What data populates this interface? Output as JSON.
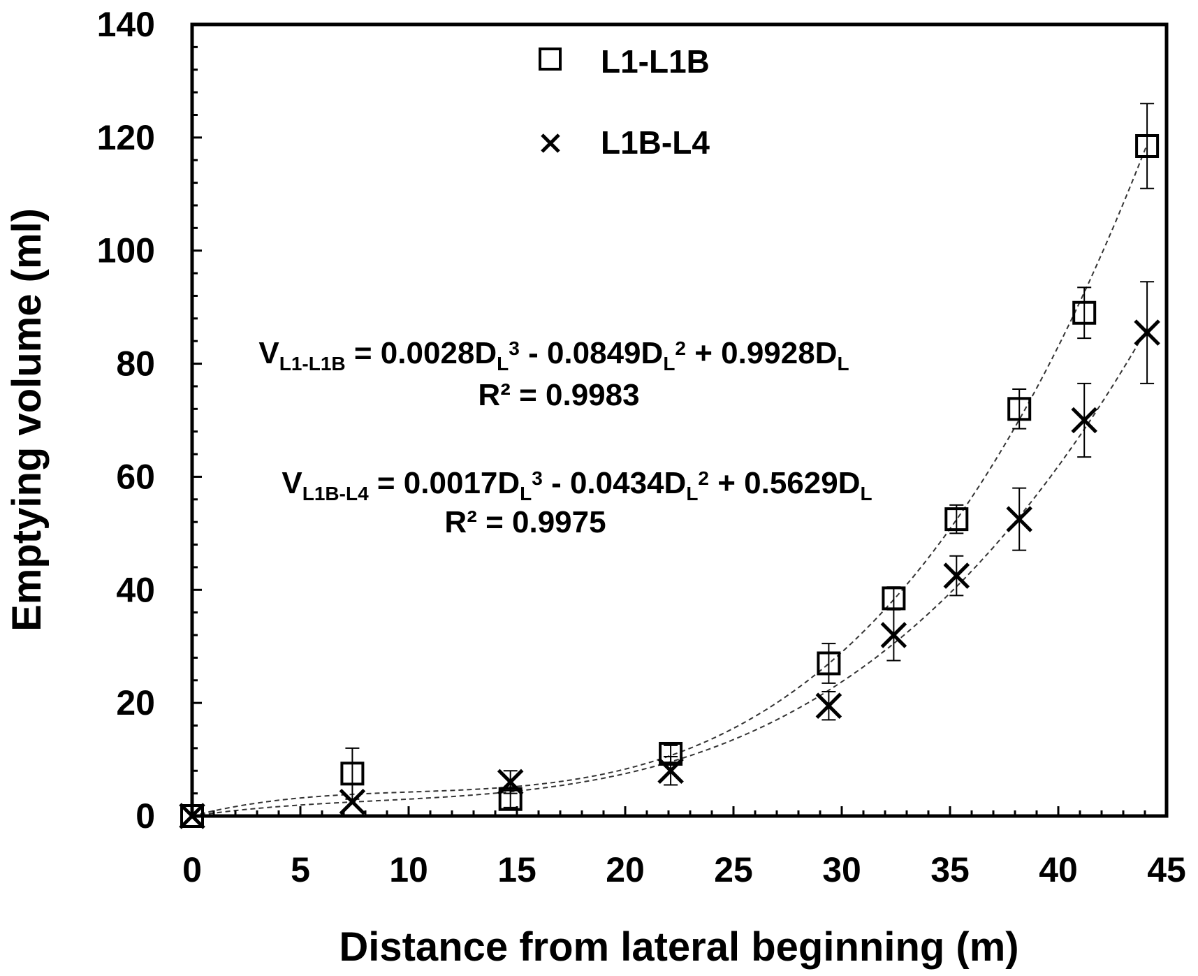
{
  "chart_data": {
    "type": "scatter",
    "xlabel": "Distance from lateral beginning (m)",
    "ylabel": "Emptying volume (ml)",
    "xlim": [
      0,
      45
    ],
    "ylim": [
      0,
      140
    ],
    "xticks": [
      0,
      5,
      10,
      15,
      20,
      25,
      30,
      35,
      40,
      45
    ],
    "yticks": [
      0,
      20,
      40,
      60,
      80,
      100,
      120,
      140
    ],
    "grid": false,
    "legend_position": "top-center",
    "series": [
      {
        "name": "L1-L1B",
        "marker": "open-square",
        "points": [
          {
            "x": 0,
            "y": 0,
            "err": 0
          },
          {
            "x": 7.4,
            "y": 7.5,
            "err": 4.5
          },
          {
            "x": 14.7,
            "y": 3,
            "err": 1.5
          },
          {
            "x": 22.1,
            "y": 11,
            "err": 1.5
          },
          {
            "x": 29.4,
            "y": 27,
            "err": 3.5
          },
          {
            "x": 32.4,
            "y": 38.5,
            "err": 2
          },
          {
            "x": 35.3,
            "y": 52.5,
            "err": 2.5
          },
          {
            "x": 38.2,
            "y": 72,
            "err": 3.5
          },
          {
            "x": 41.2,
            "y": 89,
            "err": 4.5
          },
          {
            "x": 44.1,
            "y": 118.5,
            "err": 7.5
          }
        ],
        "trendline": {
          "a3": 0.0028,
          "a2": -0.0849,
          "a1": 0.9928
        },
        "equation": {
          "lead": "V",
          "sub": "L1-L1B",
          "body": " = 0.0028D",
          "t1sub": "L",
          "t1sup": "3",
          "t2": " - 0.0849D",
          "t2sub": "L",
          "t2sup": "2",
          "t3": " + 0.9928D",
          "t3sub": "L",
          "r2": "R² = 0.9983"
        }
      },
      {
        "name": "L1B-L4",
        "marker": "x",
        "points": [
          {
            "x": 0,
            "y": 0,
            "err": 0
          },
          {
            "x": 7.4,
            "y": 2.5,
            "err": 0
          },
          {
            "x": 14.7,
            "y": 6,
            "err": 2
          },
          {
            "x": 22.1,
            "y": 8,
            "err": 2.5
          },
          {
            "x": 29.4,
            "y": 19.5,
            "err": 2.5
          },
          {
            "x": 32.4,
            "y": 32,
            "err": 4.5
          },
          {
            "x": 35.3,
            "y": 42.5,
            "err": 3.5
          },
          {
            "x": 38.2,
            "y": 52.5,
            "err": 5.5
          },
          {
            "x": 41.2,
            "y": 70,
            "err": 6.5
          },
          {
            "x": 44.1,
            "y": 85.5,
            "err": 9
          }
        ],
        "trendline": {
          "a3": 0.0017,
          "a2": -0.0434,
          "a1": 0.5629
        },
        "equation": {
          "lead": "V",
          "sub": "L1B-L4",
          "body": " = 0.0017D",
          "t1sub": "L",
          "t1sup": "3",
          "t2": " - 0.0434D",
          "t2sub": "L",
          "t2sup": "2",
          "t3": " + 0.5629D",
          "t3sub": "L",
          "r2": "R² = 0.9975"
        }
      }
    ]
  }
}
